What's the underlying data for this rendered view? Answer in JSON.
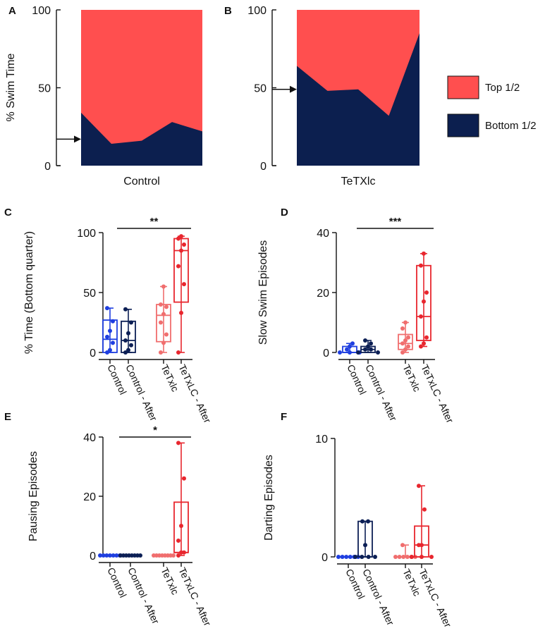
{
  "colors": {
    "top": "#ff4f4f",
    "bottom": "#0c1f4f",
    "control": "#1f3fe0",
    "control_after": "#0c1f55",
    "tetx": "#f06e6e",
    "tetx_after": "#e8262e",
    "axis": "#111111"
  },
  "legend": {
    "items": [
      {
        "label": "Top 1/2",
        "color": "#ff4f4f"
      },
      {
        "label": "Bottom 1/2",
        "color": "#0c1f4f"
      }
    ]
  },
  "chart_data": [
    {
      "panel": "A",
      "type": "area",
      "title": "",
      "xlabel": "Control",
      "ylabel": "% Swim Time",
      "ylim": [
        0,
        100
      ],
      "yticks": [
        "0",
        "50",
        "100"
      ],
      "x": [
        1,
        2,
        3,
        4,
        5
      ],
      "series": [
        {
          "name": "Bottom 1/2",
          "values": [
            34,
            14,
            16,
            28,
            22
          ]
        },
        {
          "name": "Top 1/2",
          "values": [
            66,
            86,
            84,
            72,
            78
          ]
        }
      ],
      "arrow_value": 17
    },
    {
      "panel": "B",
      "type": "area",
      "title": "",
      "xlabel": "TeTXlc",
      "ylabel": "",
      "ylim": [
        0,
        100
      ],
      "yticks": [
        "0",
        "50",
        "100"
      ],
      "x": [
        1,
        2,
        3,
        4,
        5
      ],
      "series": [
        {
          "name": "Bottom 1/2",
          "values": [
            64,
            48,
            49,
            32,
            85
          ]
        },
        {
          "name": "Top 1/2",
          "values": [
            36,
            52,
            51,
            68,
            15
          ]
        }
      ],
      "arrow_value": 49
    },
    {
      "panel": "C",
      "type": "box",
      "ylabel": "% Time (Bottom quarter)",
      "ylim": [
        0,
        100
      ],
      "yticks": [
        "0",
        "50",
        "100"
      ],
      "categories": [
        "Control",
        "Control - After",
        "TeTxlc",
        "TeTxLC - After"
      ],
      "significance": "**",
      "sig_from": 1,
      "sig_to": 3,
      "sig_value": 103,
      "boxes": [
        {
          "min": 0,
          "q1": 0,
          "median": 11,
          "q3": 27,
          "max": 37,
          "points": [
            0,
            2,
            8,
            13,
            18,
            26,
            37
          ]
        },
        {
          "min": 0,
          "q1": 0,
          "median": 10,
          "q3": 26,
          "max": 36,
          "points": [
            0,
            2,
            6,
            10,
            16,
            25,
            36
          ]
        },
        {
          "min": 0,
          "q1": 9,
          "median": 31,
          "q3": 40,
          "max": 55,
          "points": [
            0,
            8,
            15,
            25,
            32,
            38,
            40,
            55
          ]
        },
        {
          "min": 0,
          "q1": 42,
          "median": 85,
          "q3": 95,
          "max": 97,
          "points": [
            0,
            33,
            57,
            72,
            85,
            90,
            95,
            97
          ]
        }
      ]
    },
    {
      "panel": "D",
      "type": "box",
      "ylabel": "Slow Swim Episodes",
      "ylim": [
        0,
        40
      ],
      "yticks": [
        "0",
        "20",
        "40"
      ],
      "categories": [
        "Control",
        "Control - After",
        "TeTxlc",
        "TeTxLC - After"
      ],
      "significance": "***",
      "sig_from": 1,
      "sig_to": 3,
      "sig_value": 41,
      "boxes": [
        {
          "min": 0,
          "q1": 0,
          "median": 0,
          "q3": 2,
          "max": 3,
          "points": [
            0,
            0,
            0,
            1,
            2,
            3
          ]
        },
        {
          "min": 0,
          "q1": 0,
          "median": 1,
          "q3": 2,
          "max": 4,
          "points": [
            0,
            0,
            1,
            1,
            2,
            3,
            4
          ]
        },
        {
          "min": 0,
          "q1": 1,
          "median": 3,
          "q3": 6,
          "max": 10,
          "points": [
            0,
            1,
            2,
            3,
            4,
            5,
            8,
            10
          ]
        },
        {
          "min": 2,
          "q1": 4,
          "median": 12,
          "q3": 29,
          "max": 33,
          "points": [
            2,
            3,
            5,
            12,
            17,
            20,
            29,
            33
          ]
        }
      ]
    },
    {
      "panel": "E",
      "type": "box",
      "ylabel": "Pausing Episodes",
      "ylim": [
        0,
        40
      ],
      "yticks": [
        "0",
        "20",
        "40"
      ],
      "categories": [
        "Control",
        "Control - After",
        "TeTxlc",
        "TeTxLC - After"
      ],
      "significance": "*",
      "sig_from": 1,
      "sig_to": 3,
      "sig_value": 39.5,
      "boxes": [
        {
          "min": 0,
          "q1": 0,
          "median": 0,
          "q3": 0,
          "max": 0,
          "points": [
            0,
            0,
            0,
            0,
            0,
            0,
            0
          ]
        },
        {
          "min": 0,
          "q1": 0,
          "median": 0,
          "q3": 0,
          "max": 0,
          "points": [
            0,
            0,
            0,
            0,
            0,
            0,
            0,
            0
          ]
        },
        {
          "min": 0,
          "q1": 0,
          "median": 0,
          "q3": 0,
          "max": 0,
          "points": [
            0,
            0,
            0,
            0,
            0,
            0,
            0,
            0
          ]
        },
        {
          "min": 0,
          "q1": 1,
          "median": 1,
          "q3": 18,
          "max": 38,
          "points": [
            0,
            1,
            1,
            5,
            10,
            26,
            38
          ]
        }
      ]
    },
    {
      "panel": "F",
      "type": "box",
      "ylabel": "Darting Episodes",
      "ylim": [
        0,
        10
      ],
      "yticks": [
        "0",
        "10"
      ],
      "categories": [
        "Control",
        "Control - After",
        "TeTxlc",
        "TeTxLC - After"
      ],
      "significance": "",
      "boxes": [
        {
          "min": 0,
          "q1": 0,
          "median": 0,
          "q3": 0,
          "max": 0,
          "points": [
            0,
            0,
            0,
            0,
            0,
            0
          ]
        },
        {
          "min": 0,
          "q1": 0,
          "median": 0,
          "q3": 3,
          "max": 3,
          "points": [
            0,
            0,
            0,
            0,
            1,
            3,
            3
          ]
        },
        {
          "min": 0,
          "q1": 0,
          "median": 0,
          "q3": 0,
          "max": 1,
          "points": [
            0,
            0,
            0,
            0,
            0,
            0,
            1
          ]
        },
        {
          "min": 0,
          "q1": 0,
          "median": 1,
          "q3": 2.6,
          "max": 6,
          "points": [
            0,
            0,
            0,
            1,
            1,
            4,
            6
          ]
        }
      ]
    }
  ]
}
